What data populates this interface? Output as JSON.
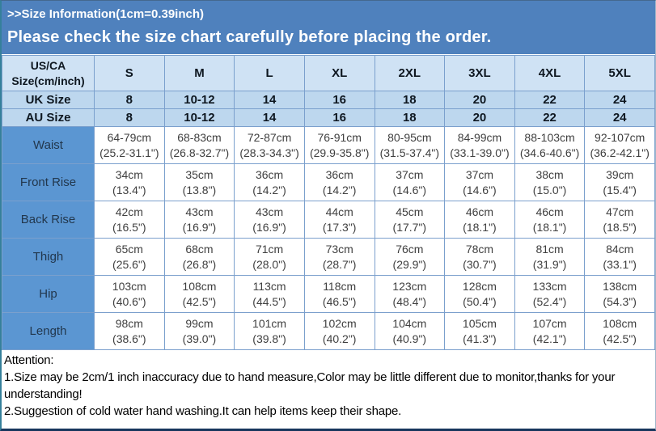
{
  "banner": {
    "title": ">>Size Information(1cm=0.39inch)",
    "subtitle": "Please check the size chart carefully before placing the order."
  },
  "table": {
    "header": {
      "label_line1": "US/CA",
      "label_line2": "Size(cm/inch)",
      "sizes": [
        "S",
        "M",
        "L",
        "XL",
        "2XL",
        "3XL",
        "4XL",
        "5XL"
      ]
    },
    "size_rows": [
      {
        "label": "UK Size",
        "values": [
          "8",
          "10-12",
          "14",
          "16",
          "18",
          "20",
          "22",
          "24"
        ]
      },
      {
        "label": "AU Size",
        "values": [
          "8",
          "10-12",
          "14",
          "16",
          "18",
          "20",
          "22",
          "24"
        ]
      }
    ],
    "measurement_rows": [
      {
        "label": "Waist",
        "values": [
          {
            "cm": "64-79cm",
            "in": "(25.2-31.1\")"
          },
          {
            "cm": "68-83cm",
            "in": "(26.8-32.7\")"
          },
          {
            "cm": "72-87cm",
            "in": "(28.3-34.3\")"
          },
          {
            "cm": "76-91cm",
            "in": "(29.9-35.8\")"
          },
          {
            "cm": "80-95cm",
            "in": "(31.5-37.4\")"
          },
          {
            "cm": "84-99cm",
            "in": "(33.1-39.0\")"
          },
          {
            "cm": "88-103cm",
            "in": "(34.6-40.6\")"
          },
          {
            "cm": "92-107cm",
            "in": "(36.2-42.1\")"
          }
        ]
      },
      {
        "label": "Front Rise",
        "values": [
          {
            "cm": "34cm",
            "in": "(13.4\")"
          },
          {
            "cm": "35cm",
            "in": "(13.8\")"
          },
          {
            "cm": "36cm",
            "in": "(14.2\")"
          },
          {
            "cm": "36cm",
            "in": "(14.2\")"
          },
          {
            "cm": "37cm",
            "in": "(14.6\")"
          },
          {
            "cm": "37cm",
            "in": "(14.6\")"
          },
          {
            "cm": "38cm",
            "in": "(15.0\")"
          },
          {
            "cm": "39cm",
            "in": "(15.4\")"
          }
        ]
      },
      {
        "label": "Back Rise",
        "values": [
          {
            "cm": "42cm",
            "in": "(16.5\")"
          },
          {
            "cm": "43cm",
            "in": "(16.9\")"
          },
          {
            "cm": "43cm",
            "in": "(16.9\")"
          },
          {
            "cm": "44cm",
            "in": "(17.3\")"
          },
          {
            "cm": "45cm",
            "in": "(17.7\")"
          },
          {
            "cm": "46cm",
            "in": "(18.1\")"
          },
          {
            "cm": "46cm",
            "in": "(18.1\")"
          },
          {
            "cm": "47cm",
            "in": "(18.5\")"
          }
        ]
      },
      {
        "label": "Thigh",
        "values": [
          {
            "cm": "65cm",
            "in": "(25.6\")"
          },
          {
            "cm": "68cm",
            "in": "(26.8\")"
          },
          {
            "cm": "71cm",
            "in": "(28.0\")"
          },
          {
            "cm": "73cm",
            "in": "(28.7\")"
          },
          {
            "cm": "76cm",
            "in": "(29.9\")"
          },
          {
            "cm": "78cm",
            "in": "(30.7\")"
          },
          {
            "cm": "81cm",
            "in": "(31.9\")"
          },
          {
            "cm": "84cm",
            "in": "(33.1\")"
          }
        ]
      },
      {
        "label": "Hip",
        "values": [
          {
            "cm": "103cm",
            "in": "(40.6\")"
          },
          {
            "cm": "108cm",
            "in": "(42.5\")"
          },
          {
            "cm": "113cm",
            "in": "(44.5\")"
          },
          {
            "cm": "118cm",
            "in": "(46.5\")"
          },
          {
            "cm": "123cm",
            "in": "(48.4\")"
          },
          {
            "cm": "128cm",
            "in": "(50.4\")"
          },
          {
            "cm": "133cm",
            "in": "(52.4\")"
          },
          {
            "cm": "138cm",
            "in": "(54.3\")"
          }
        ]
      },
      {
        "label": "Length",
        "values": [
          {
            "cm": "98cm",
            "in": "(38.6\")"
          },
          {
            "cm": "99cm",
            "in": "(39.0\")"
          },
          {
            "cm": "101cm",
            "in": "(39.8\")"
          },
          {
            "cm": "102cm",
            "in": "(40.2\")"
          },
          {
            "cm": "104cm",
            "in": "(40.9\")"
          },
          {
            "cm": "105cm",
            "in": "(41.3\")"
          },
          {
            "cm": "107cm",
            "in": "(42.1\")"
          },
          {
            "cm": "108cm",
            "in": "(42.5\")"
          }
        ]
      }
    ]
  },
  "attention": {
    "heading": "Attention:",
    "note1": "1.Size may be 2cm/1 inch inaccuracy due to hand measure,Color may be little different due to monitor,thanks for your understanding!",
    "note2": "2.Suggestion of cold water hand washing.It can help items keep their shape."
  },
  "colors": {
    "banner_bg": "#4f81bd",
    "header_bg": "#cfe2f4",
    "size_row_bg": "#bdd7ee",
    "label_cell_bg": "#5b96d2",
    "grid_border": "#7ba0cd",
    "bottom_border": "#17365d"
  }
}
